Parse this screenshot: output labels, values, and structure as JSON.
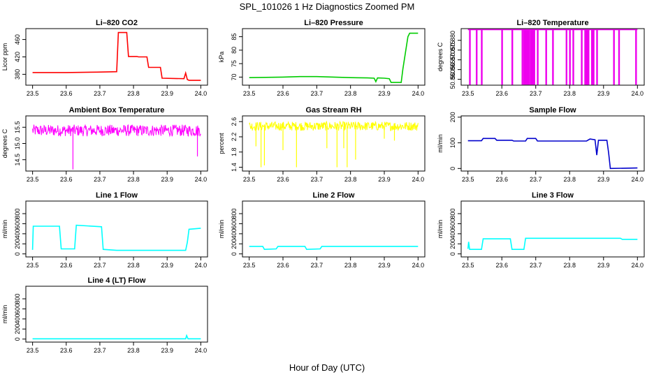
{
  "figure": {
    "title": "SPL_101026  1 Hz Diagnostics Zoomed PM",
    "xlabel": "Hour of Day (UTC)"
  },
  "chart_data": [
    {
      "type": "line",
      "title": "Li–820 CO2",
      "ylabel": "Licor ppm",
      "color": "#ff0000",
      "xlim": [
        23.48,
        24.02
      ],
      "ylim": [
        355,
        485
      ],
      "xticks": [
        23.5,
        23.6,
        23.7,
        23.8,
        23.9,
        24.0
      ],
      "xtick_labels": [
        "23.5",
        "23.6",
        "23.7",
        "23.8",
        "23.9",
        "24.0"
      ],
      "yticks": [
        380,
        420,
        460
      ],
      "ytick_labels": [
        "380",
        "420",
        "460"
      ],
      "x": [
        23.5,
        23.6,
        23.69,
        23.75,
        23.755,
        23.78,
        23.785,
        23.81,
        23.815,
        23.84,
        23.845,
        23.88,
        23.885,
        23.95,
        23.955,
        23.96,
        23.965,
        24.0
      ],
      "y": [
        384,
        384,
        385,
        386,
        476,
        476,
        421,
        421,
        420,
        420,
        396,
        396,
        371,
        370,
        383,
        368,
        366,
        366
      ]
    },
    {
      "type": "line",
      "title": "Li–820 Pressure",
      "ylabel": "kPa",
      "color": "#00cc00",
      "xlim": [
        23.48,
        24.02
      ],
      "ylim": [
        67,
        88
      ],
      "xticks": [
        23.5,
        23.6,
        23.7,
        23.8,
        23.9,
        24.0
      ],
      "xtick_labels": [
        "23.5",
        "23.6",
        "23.7",
        "23.8",
        "23.9",
        "24.0"
      ],
      "yticks": [
        70,
        75,
        80,
        85
      ],
      "ytick_labels": [
        "70",
        "75",
        "80",
        "85"
      ],
      "x": [
        23.5,
        23.6,
        23.65,
        23.7,
        23.75,
        23.8,
        23.85,
        23.87,
        23.875,
        23.88,
        23.9,
        23.915,
        23.92,
        23.95,
        23.955,
        23.97,
        23.975,
        24.0
      ],
      "y": [
        69.8,
        70.0,
        70.2,
        70.2,
        70.0,
        69.8,
        69.7,
        69.6,
        68.3,
        69.7,
        69.6,
        69.4,
        68.0,
        68.0,
        73.0,
        85.0,
        86.3,
        86.3
      ]
    },
    {
      "type": "line",
      "title": "Li–820 Temperature",
      "ylabel": "degrees C",
      "color": "#ee00ee",
      "xlim": [
        23.48,
        24.02
      ],
      "ylim": [
        50.857,
        50.886
      ],
      "xticks": [
        23.5,
        23.6,
        23.7,
        23.8,
        23.9,
        24.0
      ],
      "xtick_labels": [
        "23.5",
        "23.6",
        "23.7",
        "23.8",
        "23.9",
        "24.0"
      ],
      "yticks": [
        50.86,
        50.865,
        50.87,
        50.875,
        50.88
      ],
      "ytick_labels": [
        "50.860",
        "50.865",
        "50.870",
        "50.875",
        "50.880"
      ],
      "baseline": 50.8855,
      "dip": 50.8575,
      "dips_x": [
        23.505,
        23.525,
        23.54,
        23.6,
        23.63,
        23.66,
        23.665,
        23.67,
        23.675,
        23.68,
        23.685,
        23.69,
        23.695,
        23.705,
        23.73,
        23.75,
        23.79,
        23.8,
        23.81,
        23.835,
        23.845,
        23.85,
        23.855,
        23.865,
        23.87,
        23.88,
        23.93,
        23.945,
        23.995
      ]
    },
    {
      "type": "line",
      "title": "Ambient Box Temperature",
      "ylabel": "degrees C",
      "color": "#ff00ff",
      "xlim": [
        23.48,
        24.02
      ],
      "ylim": [
        14.15,
        15.85
      ],
      "xticks": [
        23.5,
        23.6,
        23.7,
        23.8,
        23.9,
        24.0
      ],
      "xtick_labels": [
        "23.5",
        "23.6",
        "23.7",
        "23.8",
        "23.9",
        "24.0"
      ],
      "yticks": [
        14.5,
        15.0,
        15.5
      ],
      "ytick_labels": [
        "14.5",
        "15.0",
        "15.5"
      ],
      "noise": {
        "center": 15.4,
        "amp": 0.18,
        "spikes_x": [
          23.62,
          23.99
        ],
        "spikes_y": [
          14.2,
          14.6
        ]
      }
    },
    {
      "type": "line",
      "title": "Gas Stream RH",
      "ylabel": "percent",
      "color": "#ffff00",
      "xlim": [
        23.48,
        24.02
      ],
      "ylim": [
        1.3,
        2.75
      ],
      "xticks": [
        23.5,
        23.6,
        23.7,
        23.8,
        23.9,
        24.0
      ],
      "xtick_labels": [
        "23.5",
        "23.6",
        "23.7",
        "23.8",
        "23.9",
        "24.0"
      ],
      "yticks": [
        1.4,
        1.8,
        2.2,
        2.6
      ],
      "ytick_labels": [
        "1.4",
        "1.8",
        "2.2",
        "2.6"
      ],
      "noise": {
        "center": 2.48,
        "amp": 0.12,
        "spikes_x": [
          23.52,
          23.535,
          23.545,
          23.6,
          23.64,
          23.73,
          23.76,
          23.78,
          23.79,
          23.815,
          23.9,
          23.93
        ],
        "spikes_y": [
          1.95,
          1.4,
          1.45,
          1.85,
          1.4,
          1.9,
          1.4,
          1.9,
          1.4,
          1.6,
          2.15,
          2.1
        ]
      }
    },
    {
      "type": "line",
      "title": "Sample Flow",
      "ylabel": "ml/min",
      "color": "#0000cc",
      "xlim": [
        23.48,
        24.02
      ],
      "ylim": [
        -10,
        205
      ],
      "xticks": [
        23.5,
        23.6,
        23.7,
        23.8,
        23.9,
        24.0
      ],
      "xtick_labels": [
        "23.5",
        "23.6",
        "23.7",
        "23.8",
        "23.9",
        "24.0"
      ],
      "yticks": [
        0,
        100,
        200
      ],
      "ytick_labels": [
        "0",
        "100",
        "200"
      ],
      "x": [
        23.5,
        23.54,
        23.545,
        23.58,
        23.585,
        23.63,
        23.635,
        23.67,
        23.675,
        23.7,
        23.705,
        23.85,
        23.86,
        23.875,
        23.88,
        23.885,
        23.91,
        23.915,
        23.92,
        24.0
      ],
      "y": [
        108,
        108,
        117,
        117,
        110,
        110,
        107,
        107,
        117,
        117,
        107,
        107,
        115,
        112,
        52,
        110,
        110,
        60,
        0,
        2
      ]
    },
    {
      "type": "line",
      "title": "Line 1 Flow",
      "ylabel": "ml/min",
      "color": "#00ffff",
      "xlim": [
        23.48,
        24.02
      ],
      "ylim": [
        -60,
        1050
      ],
      "xticks": [
        23.5,
        23.6,
        23.7,
        23.8,
        23.9,
        24.0
      ],
      "xtick_labels": [
        "23.5",
        "23.6",
        "23.7",
        "23.8",
        "23.9",
        "24.0"
      ],
      "yticks": [
        0,
        200,
        400,
        600,
        800
      ],
      "ytick_labels": [
        "0",
        "200",
        "400",
        "600",
        "800"
      ],
      "x": [
        23.5,
        23.502,
        23.58,
        23.585,
        23.625,
        23.63,
        23.705,
        23.71,
        23.75,
        23.955,
        23.96,
        23.965,
        24.0
      ],
      "y": [
        80,
        550,
        550,
        100,
        100,
        570,
        540,
        90,
        70,
        70,
        230,
        490,
        510
      ]
    },
    {
      "type": "line",
      "title": "Line 2 Flow",
      "ylabel": "ml/min",
      "color": "#00ffff",
      "xlim": [
        23.48,
        24.02
      ],
      "ylim": [
        -60,
        1050
      ],
      "xticks": [
        23.5,
        23.6,
        23.7,
        23.8,
        23.9,
        24.0
      ],
      "xtick_labels": [
        "23.5",
        "23.6",
        "23.7",
        "23.8",
        "23.9",
        "24.0"
      ],
      "yticks": [
        0,
        200,
        400,
        600,
        800
      ],
      "ytick_labels": [
        "0",
        "200",
        "400",
        "600",
        "800"
      ],
      "x": [
        23.5,
        23.54,
        23.545,
        23.58,
        23.585,
        23.665,
        23.67,
        23.71,
        23.715,
        24.0
      ],
      "y": [
        150,
        150,
        90,
        100,
        150,
        150,
        90,
        100,
        150,
        150
      ]
    },
    {
      "type": "line",
      "title": "Line 3 Flow",
      "ylabel": "ml/min",
      "color": "#00ffff",
      "xlim": [
        23.48,
        24.02
      ],
      "ylim": [
        -60,
        1050
      ],
      "xticks": [
        23.5,
        23.6,
        23.7,
        23.8,
        23.9,
        24.0
      ],
      "xtick_labels": [
        "23.5",
        "23.6",
        "23.7",
        "23.8",
        "23.9",
        "24.0"
      ],
      "yticks": [
        0,
        200,
        400,
        600,
        800
      ],
      "ytick_labels": [
        "0",
        "200",
        "400",
        "600",
        "800"
      ],
      "x": [
        23.5,
        23.502,
        23.505,
        23.54,
        23.545,
        23.625,
        23.63,
        23.665,
        23.67,
        23.95,
        23.955,
        24.0
      ],
      "y": [
        100,
        240,
        90,
        90,
        300,
        300,
        90,
        90,
        310,
        310,
        290,
        290
      ]
    },
    {
      "type": "line",
      "title": "Line 4 (LT) Flow",
      "ylabel": "ml/min",
      "color": "#00ffff",
      "xlim": [
        23.48,
        24.02
      ],
      "ylim": [
        -60,
        1050
      ],
      "xticks": [
        23.5,
        23.6,
        23.7,
        23.8,
        23.9,
        24.0
      ],
      "xtick_labels": [
        "23.5",
        "23.6",
        "23.7",
        "23.8",
        "23.9",
        "24.0"
      ],
      "yticks": [
        0,
        200,
        400,
        600,
        800
      ],
      "ytick_labels": [
        "0",
        "200",
        "400",
        "600",
        "800"
      ],
      "x": [
        23.5,
        23.955,
        23.958,
        23.962,
        24.0
      ],
      "y": [
        5,
        5,
        70,
        5,
        5
      ]
    }
  ]
}
